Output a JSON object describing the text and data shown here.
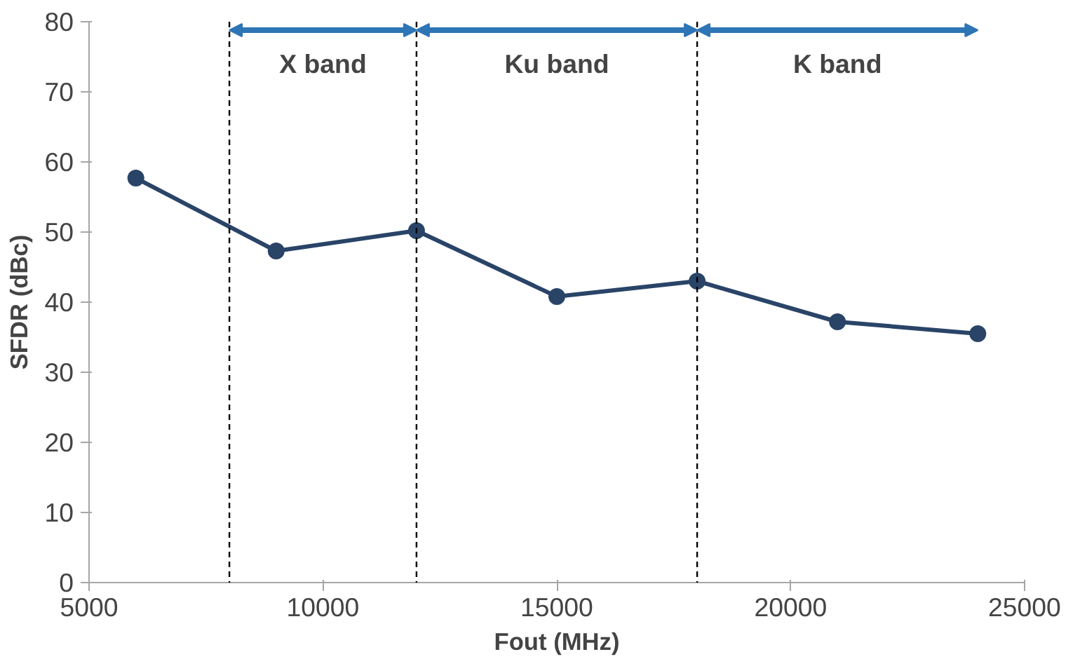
{
  "chart_data": {
    "type": "line",
    "xlabel": "Fout (MHz)",
    "ylabel": "SFDR (dBc)",
    "x": [
      6000,
      9000,
      12000,
      15000,
      18000,
      21000,
      24000
    ],
    "series": [
      {
        "color": "#2a4468",
        "values": [
          57.7,
          47.3,
          50.2,
          40.8,
          43.0,
          37.2,
          35.5
        ]
      }
    ],
    "xlim": [
      5000,
      25000
    ],
    "xticks": [
      5000,
      10000,
      15000,
      20000,
      25000
    ],
    "ylim": [
      0,
      80
    ],
    "yticks": [
      0,
      10,
      20,
      30,
      40,
      50,
      60,
      70,
      80
    ],
    "grid": false,
    "marker": "circle",
    "line_style": "solid",
    "ref_lines": [
      {
        "axis": "x",
        "value": 8000,
        "color": "#000000",
        "line_style": "dashed"
      },
      {
        "axis": "x",
        "value": 12000,
        "color": "#000000",
        "line_style": "dashed"
      },
      {
        "axis": "x",
        "value": 18000,
        "color": "#000000",
        "line_style": "dashed"
      }
    ],
    "annotations": [
      "X band",
      "Ku band",
      "K band"
    ]
  }
}
